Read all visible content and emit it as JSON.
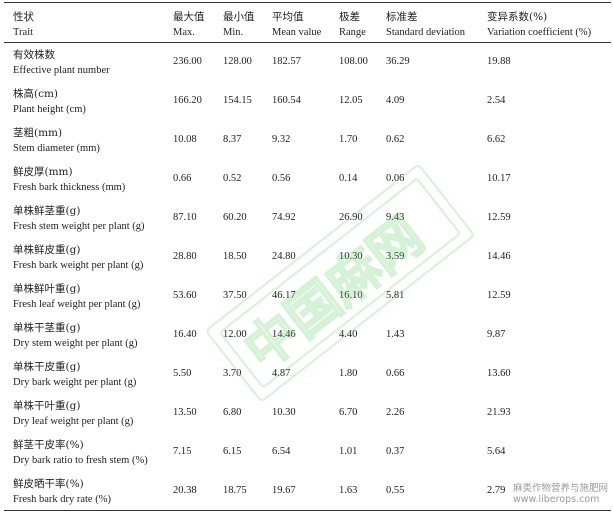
{
  "header": {
    "trait_zh": "性状",
    "trait_en": "Trait",
    "max_zh": "最大值",
    "max_en": "Max.",
    "min_zh": "最小值",
    "min_en": "Min.",
    "mean_zh": "平均值",
    "mean_en": "Mean value",
    "range_zh": "极差",
    "range_en": "Range",
    "sd_zh": "标准差",
    "sd_en": "Standard deviation",
    "cv_zh": "变异系数(%)",
    "cv_en": "Variation coefficient (%)"
  },
  "rows": [
    {
      "zh": "有效株数",
      "en": "Effective plant number",
      "max": "236.00",
      "min": "128.00",
      "mean": "182.57",
      "range": "108.00",
      "sd": "36.29",
      "cv": "19.88"
    },
    {
      "zh": "株高(cm)",
      "en": "Plant height (cm)",
      "max": "166.20",
      "min": "154.15",
      "mean": "160.54",
      "range": "12.05",
      "sd": "4.09",
      "cv": "2.54"
    },
    {
      "zh": "茎粗(mm)",
      "en": "Stem diameter (mm)",
      "max": "10.08",
      "min": "8.37",
      "mean": "9.32",
      "range": "1.70",
      "sd": "0.62",
      "cv": "6.62"
    },
    {
      "zh": "鲜皮厚(mm)",
      "en": "Fresh bark thickness (mm)",
      "max": "0.66",
      "min": "0.52",
      "mean": "0.56",
      "range": "0.14",
      "sd": "0.06",
      "cv": "10.17"
    },
    {
      "zh": "单株鲜茎重(g)",
      "en": "Fresh stem weight per plant (g)",
      "max": "87.10",
      "min": "60.20",
      "mean": "74.92",
      "range": "26.90",
      "sd": "9.43",
      "cv": "12.59"
    },
    {
      "zh": "单株鲜皮重(g)",
      "en": "Fresh bark weight per plant (g)",
      "max": "28.80",
      "min": "18.50",
      "mean": "24.80",
      "range": "10.30",
      "sd": "3.59",
      "cv": "14.46"
    },
    {
      "zh": "单株鲜叶重(g)",
      "en": "Fresh leaf weight per plant (g)",
      "max": "53.60",
      "min": "37.50",
      "mean": "46.17",
      "range": "16.10",
      "sd": "5.81",
      "cv": "12.59"
    },
    {
      "zh": "单株干茎重(g)",
      "en": "Dry stem weight per plant (g)",
      "max": "16.40",
      "min": "12.00",
      "mean": "14.46",
      "range": "4.40",
      "sd": "1.43",
      "cv": "9.87"
    },
    {
      "zh": "单株干皮重(g)",
      "en": "Dry bark weight per plant (g)",
      "max": "5.50",
      "min": "3.70",
      "mean": "4.87",
      "range": "1.80",
      "sd": "0.66",
      "cv": "13.60"
    },
    {
      "zh": "单株干叶重(g)",
      "en": "Dry leaf weight per plant (g)",
      "max": "13.50",
      "min": "6.80",
      "mean": "10.30",
      "range": "6.70",
      "sd": "2.26",
      "cv": "21.93"
    },
    {
      "zh": "鲜茎干皮率(%)",
      "en": "Dry bark ratio to fresh stem (%)",
      "max": "7.15",
      "min": "6.15",
      "mean": "6.54",
      "range": "1.01",
      "sd": "0.37",
      "cv": "5.64"
    },
    {
      "zh": "鲜皮晒干率(%)",
      "en": "Fresh bark dry rate (%)",
      "max": "20.38",
      "min": "18.75",
      "mean": "19.67",
      "range": "1.63",
      "sd": "0.55",
      "cv": "2.79"
    }
  ],
  "watermark": {
    "site_zh": "麻类作物营养与施肥网",
    "site_url": "www.liberops.com",
    "stamp_text": "中国麻网"
  }
}
